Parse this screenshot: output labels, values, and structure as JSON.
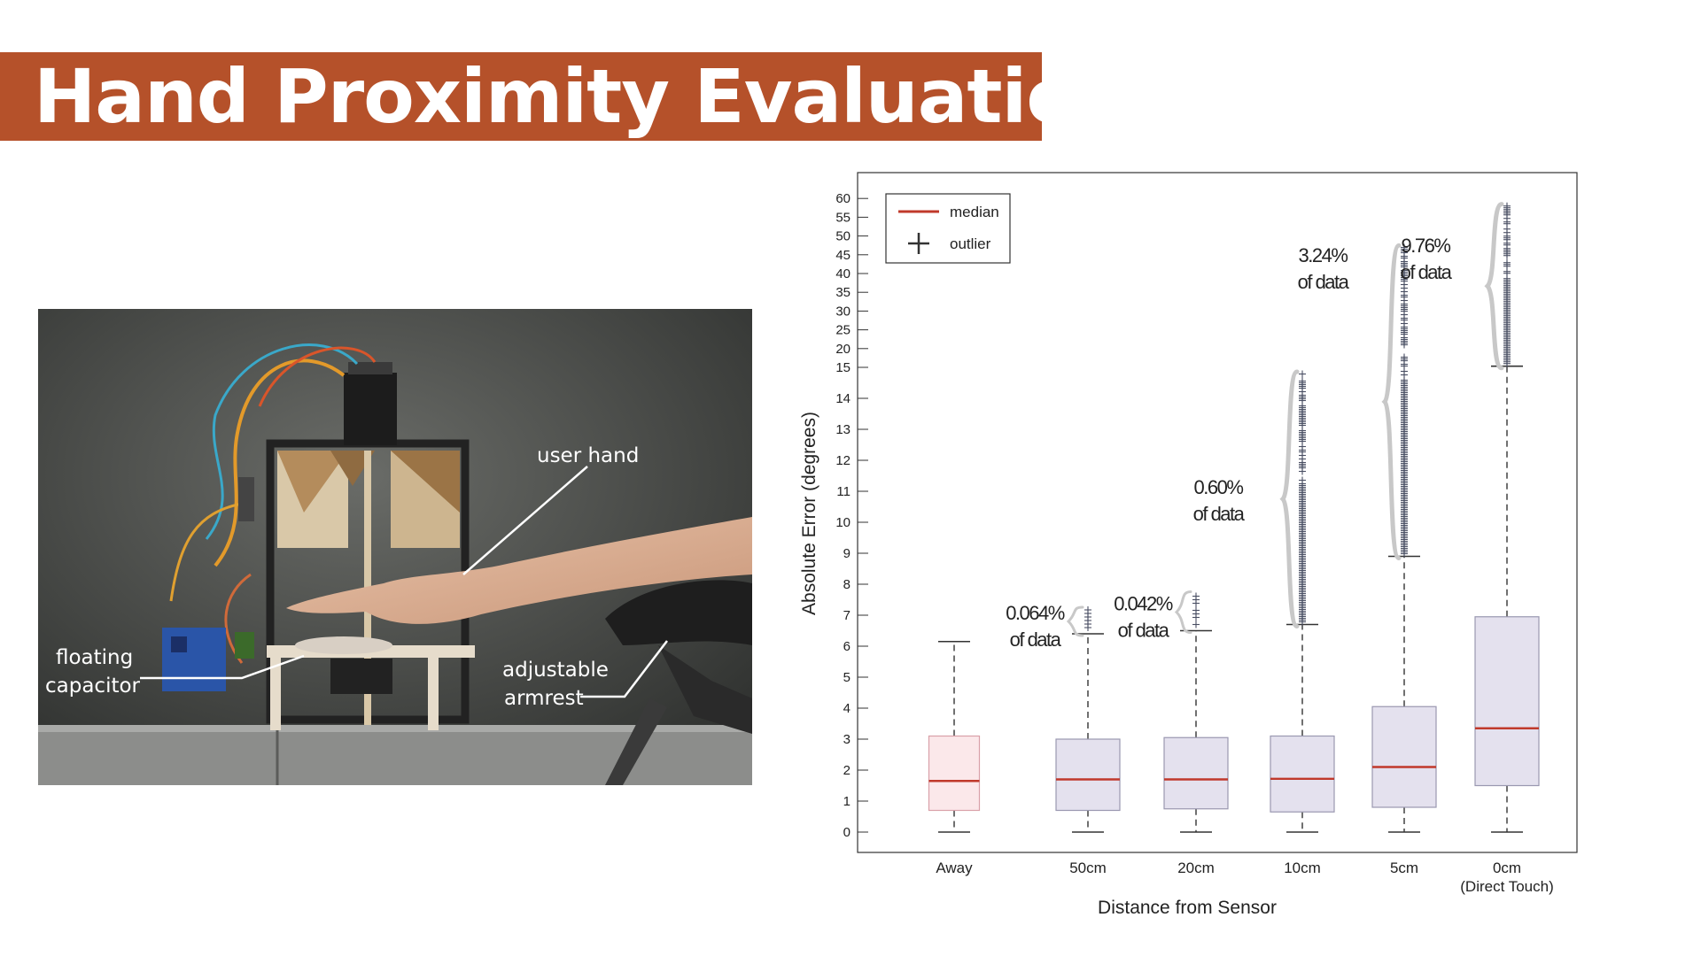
{
  "slide": {
    "title": "Hand Proximity Evaluation",
    "accent_color": "#b5512a"
  },
  "photo": {
    "labels": {
      "user_hand": "user hand",
      "floating_line1": "floating",
      "floating_line2": "capacitor",
      "armrest_line1": "adjustable",
      "armrest_line2": "armrest"
    }
  },
  "chart_data": {
    "type": "box",
    "xlabel": "Distance from Sensor",
    "ylabel": "Absolute Error (degrees)",
    "y_scale": "piecewise: linear 0-15 (1-degree ticks), compressed 15-60 (5-degree ticks)",
    "yticks": [
      0,
      1,
      2,
      3,
      4,
      5,
      6,
      7,
      8,
      9,
      10,
      11,
      12,
      13,
      14,
      15,
      20,
      25,
      30,
      35,
      40,
      45,
      50,
      55,
      60
    ],
    "legend": {
      "position": "top-left",
      "median_label": "median",
      "outlier_label": "outlier"
    },
    "colors": {
      "median": "#c0392b",
      "box_away": "#fbe8ea",
      "box": "#e4e1ee",
      "outlier": "#4a4f63"
    },
    "categories": [
      {
        "label": "Away",
        "sublabel": "",
        "min": 0,
        "q1": 0.7,
        "median": 1.65,
        "q3": 3.1,
        "whisker_high": 6.15,
        "outlier_max": null,
        "annotation_pct": "",
        "annotation_text": ""
      },
      {
        "label": "50cm",
        "sublabel": "",
        "min": 0,
        "q1": 0.7,
        "median": 1.7,
        "q3": 3.0,
        "whisker_high": 6.4,
        "outlier_max": 7.2,
        "annotation_pct": "0.064%",
        "annotation_text": "of data"
      },
      {
        "label": "20cm",
        "sublabel": "",
        "min": 0,
        "q1": 0.75,
        "median": 1.7,
        "q3": 3.05,
        "whisker_high": 6.5,
        "outlier_max": 7.7,
        "annotation_pct": "0.042%",
        "annotation_text": "of data"
      },
      {
        "label": "10cm",
        "sublabel": "",
        "min": 0,
        "q1": 0.65,
        "median": 1.72,
        "q3": 3.1,
        "whisker_high": 6.7,
        "outlier_max": 14.8,
        "annotation_pct": "0.60%",
        "annotation_text": "of data"
      },
      {
        "label": "5cm",
        "sublabel": "",
        "min": 0,
        "q1": 0.8,
        "median": 2.1,
        "q3": 4.05,
        "whisker_high": 8.9,
        "outlier_max": 47,
        "annotation_pct": "3.24%",
        "annotation_text": "of data"
      },
      {
        "label": "0cm",
        "sublabel": "(Direct Touch)",
        "min": 0,
        "q1": 1.5,
        "median": 3.35,
        "q3": 6.95,
        "whisker_high": 15.3,
        "outlier_max": 58,
        "annotation_pct": "9.76%",
        "annotation_text": "of data"
      }
    ]
  }
}
